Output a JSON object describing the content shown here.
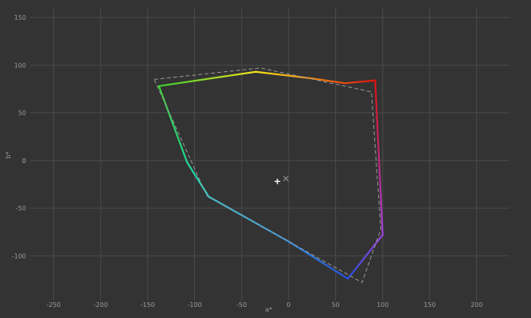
{
  "chart_data": {
    "type": "line",
    "title": "",
    "xlabel": "a*",
    "ylabel": "b*",
    "xlim": [
      -275,
      235
    ],
    "ylim": [
      -147,
      160
    ],
    "x_ticks": [
      -250,
      -200,
      -150,
      -100,
      -50,
      0,
      50,
      100,
      150,
      200
    ],
    "y_ticks": [
      -100,
      -50,
      0,
      50,
      100,
      150
    ],
    "grid": true,
    "background": "#333333",
    "gridColor": "#4a4a4a",
    "series": [
      {
        "style": "gradient-solid",
        "points": [
          {
            "x": 92,
            "y": 84,
            "color": "#e01010"
          },
          {
            "x": 60,
            "y": 81,
            "color": "#e84a10"
          },
          {
            "x": 25,
            "y": 86,
            "color": "#f08a10"
          },
          {
            "x": -35,
            "y": 93,
            "color": "#f0e020"
          },
          {
            "x": -138,
            "y": 78,
            "color": "#38d030"
          },
          {
            "x": -108,
            "y": -2,
            "color": "#20d890"
          },
          {
            "x": -85,
            "y": -38,
            "color": "#30c8d0"
          },
          {
            "x": 0,
            "y": -85,
            "color": "#3090e0"
          },
          {
            "x": 63,
            "y": -124,
            "color": "#2850e0"
          },
          {
            "x": 100,
            "y": -78,
            "color": "#a040e0"
          },
          {
            "x": 92,
            "y": 84,
            "color": "#e01010"
          }
        ]
      },
      {
        "style": "dashed",
        "color": "#9a9a9a",
        "points": [
          {
            "x": -143,
            "y": 85
          },
          {
            "x": -30,
            "y": 97
          },
          {
            "x": 88,
            "y": 72
          },
          {
            "x": 98,
            "y": -72
          },
          {
            "x": 78,
            "y": -128
          },
          {
            "x": -87,
            "y": -37
          },
          {
            "x": -143,
            "y": 85
          }
        ]
      }
    ],
    "markers": [
      {
        "symbol": "+",
        "x": -12,
        "y": -22,
        "color": "#ffffff"
      },
      {
        "symbol": "×",
        "x": -3,
        "y": -19,
        "color": "#9a9a9a"
      }
    ]
  }
}
